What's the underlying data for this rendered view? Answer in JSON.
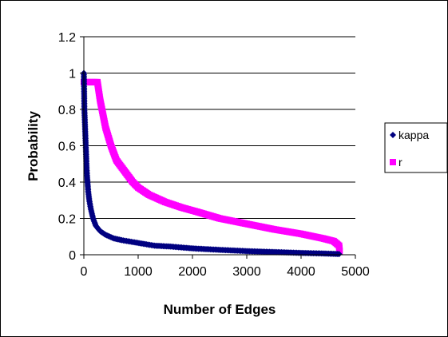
{
  "chart_data": {
    "type": "scatter",
    "title": "",
    "xlabel": "Number of Edges",
    "ylabel": "Probability",
    "xlim": [
      0,
      5000
    ],
    "ylim": [
      0,
      1.2
    ],
    "xticks": [
      0,
      1000,
      2000,
      3000,
      4000,
      5000
    ],
    "yticks": [
      0,
      0.2,
      0.4,
      0.6,
      0.8,
      1,
      1.2
    ],
    "xtick_labels": [
      "0",
      "1000",
      "2000",
      "3000",
      "4000",
      "5000"
    ],
    "ytick_labels": [
      "0",
      "0.2",
      "0.4",
      "0.6",
      "0.8",
      "1",
      "1.2"
    ],
    "grid": "horizontal",
    "legend_position": "right",
    "series": [
      {
        "name": "kappa",
        "color": "#000080",
        "marker": "diamond",
        "points": [
          [
            0,
            1.0
          ],
          [
            5,
            0.9
          ],
          [
            10,
            0.8
          ],
          [
            15,
            0.76
          ],
          [
            20,
            0.72
          ],
          [
            25,
            0.68
          ],
          [
            30,
            0.64
          ],
          [
            35,
            0.6
          ],
          [
            40,
            0.56
          ],
          [
            45,
            0.52
          ],
          [
            50,
            0.48
          ],
          [
            60,
            0.43
          ],
          [
            70,
            0.39
          ],
          [
            80,
            0.35
          ],
          [
            100,
            0.3
          ],
          [
            130,
            0.25
          ],
          [
            170,
            0.2
          ],
          [
            220,
            0.16
          ],
          [
            300,
            0.13
          ],
          [
            400,
            0.11
          ],
          [
            550,
            0.09
          ],
          [
            700,
            0.08
          ],
          [
            900,
            0.07
          ],
          [
            1100,
            0.06
          ],
          [
            1300,
            0.05
          ],
          [
            1600,
            0.045
          ],
          [
            2000,
            0.035
          ],
          [
            2500,
            0.027
          ],
          [
            3000,
            0.02
          ],
          [
            3500,
            0.015
          ],
          [
            4000,
            0.01
          ],
          [
            4400,
            0.007
          ],
          [
            4700,
            0.004
          ]
        ]
      },
      {
        "name": "r",
        "color": "#FF00FF",
        "marker": "square",
        "points": [
          [
            0,
            0.95
          ],
          [
            100,
            0.95
          ],
          [
            250,
            0.95
          ],
          [
            300,
            0.85
          ],
          [
            400,
            0.7
          ],
          [
            500,
            0.6
          ],
          [
            600,
            0.52
          ],
          [
            700,
            0.48
          ],
          [
            800,
            0.44
          ],
          [
            900,
            0.4
          ],
          [
            1000,
            0.37
          ],
          [
            1200,
            0.33
          ],
          [
            1500,
            0.29
          ],
          [
            1800,
            0.26
          ],
          [
            2100,
            0.235
          ],
          [
            2500,
            0.2
          ],
          [
            3000,
            0.17
          ],
          [
            3500,
            0.14
          ],
          [
            4000,
            0.115
          ],
          [
            4400,
            0.09
          ],
          [
            4600,
            0.075
          ],
          [
            4700,
            0.05
          ],
          [
            4710,
            0.02
          ]
        ]
      }
    ]
  }
}
